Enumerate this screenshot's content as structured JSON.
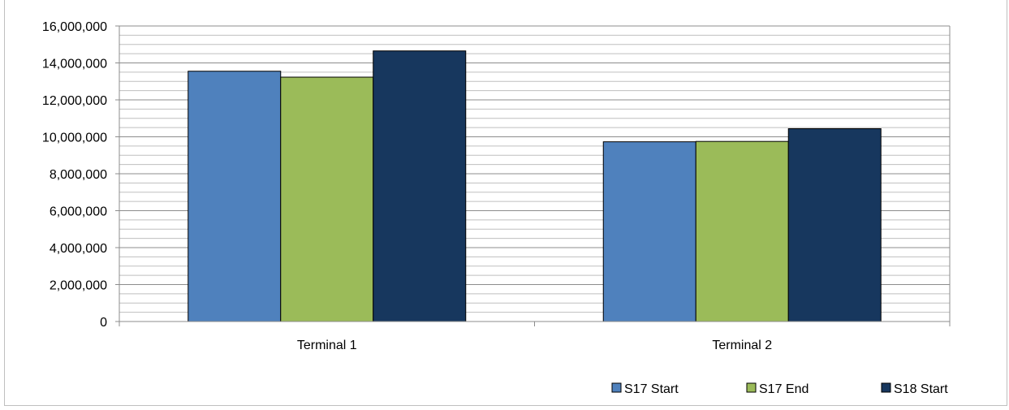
{
  "chart_data": {
    "type": "bar",
    "title": "",
    "categories": [
      "Terminal 1",
      "Terminal 2"
    ],
    "series": [
      {
        "name": "S17 Start",
        "values": [
          13550000,
          9730000
        ],
        "color": "#4f81bd"
      },
      {
        "name": "S17 End",
        "values": [
          13230000,
          9750000
        ],
        "color": "#9bbb59"
      },
      {
        "name": "S18 Start",
        "values": [
          14650000,
          10440000
        ],
        "color": "#17375e"
      }
    ],
    "ylim": [
      0,
      16000000
    ],
    "yticks": [
      0,
      2000000,
      4000000,
      6000000,
      8000000,
      10000000,
      12000000,
      14000000,
      16000000
    ],
    "ytick_labels": [
      "0",
      "2,000,000",
      "4,000,000",
      "6,000,000",
      "8,000,000",
      "10,000,000",
      "12,000,000",
      "14,000,000",
      "16,000,000"
    ],
    "minor_step": 500000,
    "grid": true,
    "legend_position": "bottom-right",
    "xlabel": "",
    "ylabel": ""
  }
}
